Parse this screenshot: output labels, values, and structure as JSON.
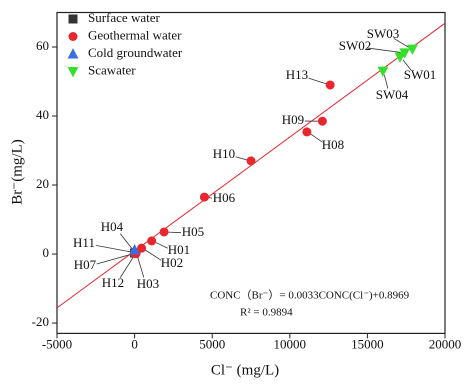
{
  "chart_data": {
    "type": "scatter",
    "x_label": "Cl⁻  (mg/L)",
    "y_label": "Br⁻(mg/L)",
    "xlim": [
      -5000,
      20000
    ],
    "xticks": [
      -5000,
      0,
      5000,
      10000,
      15000,
      20000
    ],
    "ylim": [
      -23,
      70
    ],
    "yticks": [
      -20,
      0,
      20,
      40,
      60
    ],
    "legend": "upper left",
    "series": [
      {
        "name": "Surface water",
        "color": "#333333",
        "marker": "square",
        "x": [
          0
        ],
        "values": [
          0.3
        ],
        "labels": [
          null
        ]
      },
      {
        "name": "Geothermal water",
        "color": "#e8262e",
        "marker": "circle",
        "x": [
          12600,
          12100,
          11100,
          7500,
          4500,
          1900,
          1100,
          450,
          100,
          80,
          20,
          30,
          50
        ],
        "values": [
          49,
          38.5,
          35.4,
          27,
          16.5,
          6.4,
          3.8,
          1.7,
          0.3,
          0.1,
          0.2,
          0.4,
          0.5
        ],
        "labels": [
          "H13",
          "H09",
          "H08",
          "H10",
          "H06",
          "H05",
          "H01",
          "H02",
          "H03",
          "H12",
          "H07",
          "H11",
          "H04"
        ]
      },
      {
        "name": "Cold groundwater",
        "color": "#3a6fe0",
        "marker": "triangle-up",
        "x": [
          0
        ],
        "values": [
          1.2
        ],
        "labels": [
          null
        ]
      },
      {
        "name": "Scawater",
        "color": "#33e02b",
        "marker": "triangle-down",
        "x": [
          17900,
          17400,
          17100,
          16000
        ],
        "values": [
          59.4,
          58.3,
          57.1,
          53
        ],
        "labels": [
          "SW03",
          "SW02",
          "SW01",
          "SW04"
        ]
      }
    ],
    "fit_line": {
      "slope": 0.0033,
      "intercept": 0.8969,
      "color": "#e8262e"
    },
    "equation": "CONC（Br⁻）= 0.0033CONC(Cl⁻)+0.8969",
    "r_squared": "R² = 0.9894"
  }
}
